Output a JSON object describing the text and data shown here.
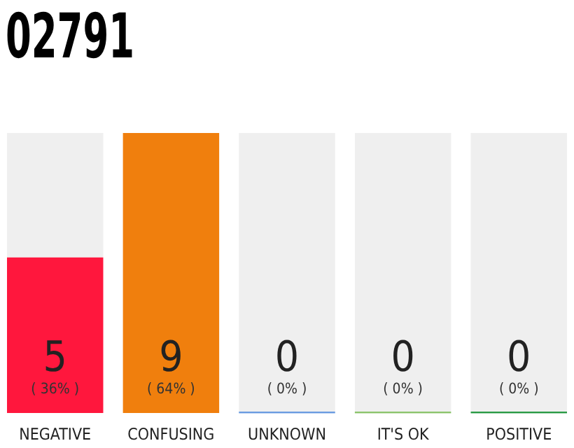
{
  "chart_data": {
    "type": "bar",
    "title": "02791",
    "categories": [
      "NEGATIVE",
      "CONFUSING",
      "UNKNOWN",
      "IT'S OK",
      "POSITIVE"
    ],
    "values": [
      5,
      9,
      0,
      0,
      0
    ],
    "colors": [
      "#ff173d",
      "#f07f0d",
      "#6a9be0",
      "#8cc46c",
      "#2a9a45"
    ],
    "data_labels": true,
    "annotations": [
      "( 36% )",
      "( 64% )",
      "( 0% )",
      "( 0% )",
      "( 0% )"
    ]
  }
}
